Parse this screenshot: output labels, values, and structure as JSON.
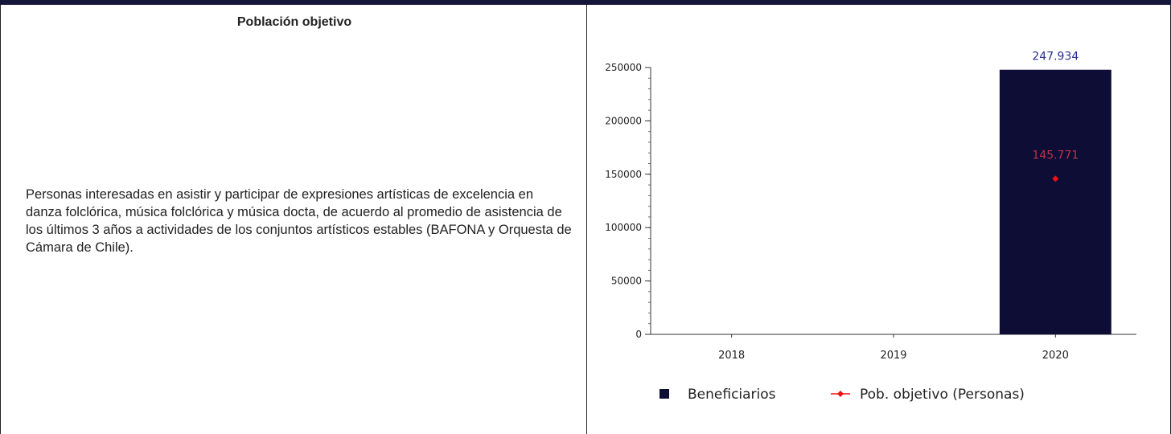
{
  "panel": {
    "title": "Población objetivo",
    "description": "Personas interesadas en asistir y participar de expresiones artísticas de excelencia en danza folclórica, música folclórica y música docta, de acuerdo al promedio de asistencia de los últimos 3 años a actividades de los conjuntos artísticos estables (BAFONA y Orquesta de Cámara de Chile)."
  },
  "chart_data": {
    "type": "bar",
    "categories": [
      "2018",
      "2019",
      "2020"
    ],
    "series": [
      {
        "name": "Beneficiarios",
        "type": "bar",
        "color": "#0d0d35",
        "values": [
          null,
          null,
          247934
        ],
        "labels": [
          "",
          "",
          "247.934"
        ],
        "label_color": "#2a2f8f"
      },
      {
        "name": "Pob. objetivo (Personas)",
        "type": "point",
        "color": "#ee1111",
        "values": [
          null,
          null,
          145771
        ],
        "labels": [
          "",
          "",
          "145.771"
        ],
        "label_color": "#c0304a"
      }
    ],
    "ylim": [
      0,
      250000
    ],
    "y_ticks": [
      "0",
      "50000",
      "100000",
      "150000",
      "200000",
      "250000"
    ],
    "y_tick_values": [
      0,
      50000,
      100000,
      150000,
      200000,
      250000
    ],
    "legend_position": "bottom",
    "grid": false
  }
}
